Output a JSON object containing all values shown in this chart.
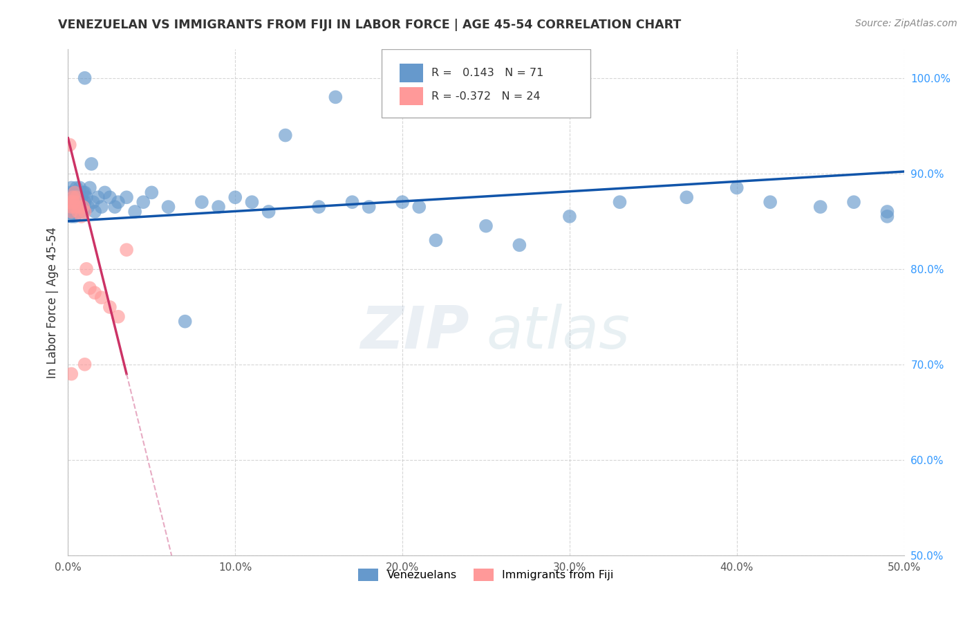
{
  "title": "VENEZUELAN VS IMMIGRANTS FROM FIJI IN LABOR FORCE | AGE 45-54 CORRELATION CHART",
  "source": "Source: ZipAtlas.com",
  "ylabel": "In Labor Force | Age 45-54",
  "xlim": [
    0.0,
    0.5
  ],
  "ylim": [
    0.5,
    1.03
  ],
  "xticks": [
    0.0,
    0.1,
    0.2,
    0.3,
    0.4,
    0.5
  ],
  "yticks": [
    0.5,
    0.6,
    0.7,
    0.8,
    0.9,
    1.0
  ],
  "ytick_labels_right": [
    "50.0%",
    "60.0%",
    "70.0%",
    "80.0%",
    "90.0%",
    "100.0%"
  ],
  "xtick_labels": [
    "0.0%",
    "10.0%",
    "20.0%",
    "30.0%",
    "40.0%",
    "50.0%"
  ],
  "legend_r_blue": "0.143",
  "legend_n_blue": "71",
  "legend_r_pink": "-0.372",
  "legend_n_pink": "24",
  "blue_color": "#6699CC",
  "pink_color": "#FF9999",
  "trendline_blue_color": "#1155AA",
  "trendline_pink_solid_color": "#CC3366",
  "trendline_pink_dash_color": "#DD88AA",
  "watermark_zip": "ZIP",
  "watermark_atlas": "atlas",
  "venezuelan_x": [
    0.001,
    0.001,
    0.001,
    0.002,
    0.002,
    0.002,
    0.002,
    0.003,
    0.003,
    0.003,
    0.003,
    0.004,
    0.004,
    0.004,
    0.005,
    0.005,
    0.005,
    0.006,
    0.006,
    0.007,
    0.007,
    0.007,
    0.008,
    0.008,
    0.009,
    0.009,
    0.01,
    0.01,
    0.011,
    0.012,
    0.013,
    0.014,
    0.015,
    0.016,
    0.018,
    0.02,
    0.022,
    0.025,
    0.028,
    0.03,
    0.035,
    0.04,
    0.045,
    0.05,
    0.06,
    0.07,
    0.08,
    0.09,
    0.1,
    0.11,
    0.12,
    0.13,
    0.15,
    0.16,
    0.17,
    0.18,
    0.2,
    0.21,
    0.22,
    0.25,
    0.27,
    0.3,
    0.33,
    0.37,
    0.4,
    0.42,
    0.45,
    0.47,
    0.49,
    0.49,
    0.01
  ],
  "venezuelan_y": [
    0.87,
    0.88,
    0.86,
    0.875,
    0.865,
    0.885,
    0.855,
    0.87,
    0.88,
    0.86,
    0.875,
    0.865,
    0.88,
    0.855,
    0.87,
    0.885,
    0.86,
    0.875,
    0.865,
    0.87,
    0.885,
    0.86,
    0.875,
    0.865,
    0.88,
    0.86,
    0.87,
    0.88,
    0.875,
    0.865,
    0.885,
    0.91,
    0.87,
    0.86,
    0.875,
    0.865,
    0.88,
    0.875,
    0.865,
    0.87,
    0.875,
    0.86,
    0.87,
    0.88,
    0.865,
    0.745,
    0.87,
    0.865,
    0.875,
    0.87,
    0.86,
    0.94,
    0.865,
    0.98,
    0.87,
    0.865,
    0.87,
    0.865,
    0.83,
    0.845,
    0.825,
    0.855,
    0.87,
    0.875,
    0.885,
    0.87,
    0.865,
    0.87,
    0.86,
    0.855,
    1.0
  ],
  "fiji_x": [
    0.001,
    0.001,
    0.002,
    0.002,
    0.003,
    0.003,
    0.004,
    0.004,
    0.005,
    0.005,
    0.006,
    0.007,
    0.008,
    0.009,
    0.01,
    0.011,
    0.013,
    0.016,
    0.02,
    0.025,
    0.03,
    0.035,
    0.01,
    0.002
  ],
  "fiji_y": [
    0.93,
    0.87,
    0.865,
    0.86,
    0.875,
    0.87,
    0.865,
    0.88,
    0.875,
    0.87,
    0.86,
    0.865,
    0.855,
    0.865,
    0.86,
    0.8,
    0.78,
    0.775,
    0.77,
    0.76,
    0.75,
    0.82,
    0.7,
    0.69
  ]
}
